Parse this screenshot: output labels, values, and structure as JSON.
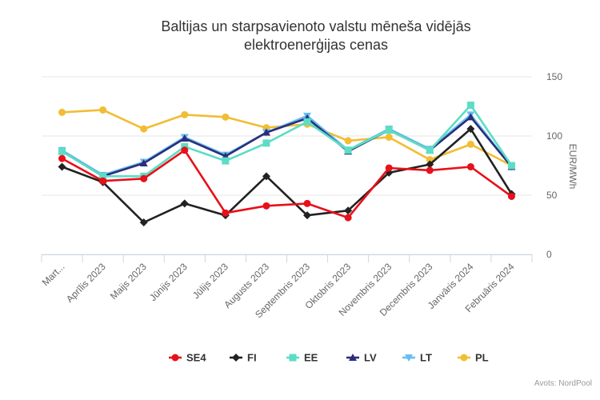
{
  "chart_data": {
    "type": "line",
    "title": "Baltijas un starpsavienoto valstu mēneša vidējās",
    "title_line2": "elektroenerģijas cenas",
    "ylabel": "EUR/MWh",
    "xlabel": "",
    "ylim": [
      0,
      150
    ],
    "yticks": [
      0,
      50,
      100,
      150
    ],
    "y_axis_side": "right",
    "grid": true,
    "legend_position": "bottom-center",
    "categories": [
      "Mart...",
      "Aprīlis 2023",
      "Maijs 2023",
      "Jūnijs 2023",
      "Jūlijs 2023",
      "Augusts 2023",
      "Septembris 2023",
      "Oktobris 2023",
      "Novembris 2023",
      "Decembris 2023",
      "Janvāris 2024",
      "Februāris 2024"
    ],
    "series": [
      {
        "name": "SE4",
        "color": "#e8101a",
        "marker": "circle",
        "values": [
          81,
          62,
          64,
          88,
          35,
          41,
          43,
          31,
          73,
          71,
          74,
          49
        ]
      },
      {
        "name": "FI",
        "color": "#222222",
        "marker": "diamond",
        "values": [
          74,
          61,
          27,
          43,
          33,
          66,
          33,
          37,
          69,
          76,
          106,
          51
        ]
      },
      {
        "name": "EE",
        "color": "#5cddc5",
        "marker": "square",
        "values": [
          87,
          66,
          66,
          91,
          79,
          94,
          112,
          88,
          105,
          88,
          126,
          75
        ]
      },
      {
        "name": "LV",
        "color": "#2b2e7a",
        "marker": "triangle",
        "values": [
          87,
          66,
          77,
          98,
          83,
          103,
          115,
          87,
          105,
          88,
          116,
          74
        ]
      },
      {
        "name": "LT",
        "color": "#66bdf2",
        "marker": "triangle-down",
        "values": [
          88,
          67,
          78,
          99,
          84,
          103,
          117,
          88,
          106,
          89,
          118,
          74
        ]
      },
      {
        "name": "PL",
        "color": "#f2bd33",
        "marker": "circle",
        "values": [
          120,
          122,
          106,
          118,
          116,
          107,
          110,
          96,
          99,
          80,
          93,
          75
        ]
      }
    ]
  },
  "credit": "Avots: NordPool"
}
